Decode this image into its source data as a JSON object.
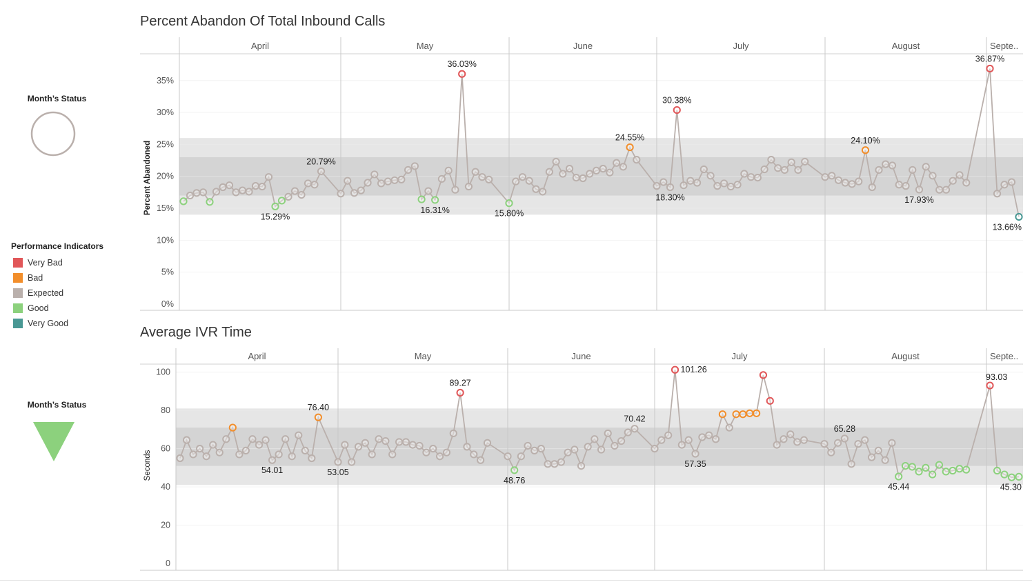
{
  "sidebar": {
    "status_top": {
      "label": "Month’s Status",
      "shape": "circle",
      "color": "#bab0ac"
    },
    "status_bottom": {
      "label": "Month’s Status",
      "shape": "triangle-down",
      "color": "#8cd17d"
    },
    "legend": {
      "title": "Performance Indicators",
      "items": [
        {
          "label": "Very Bad",
          "color": "#e15759"
        },
        {
          "label": "Bad",
          "color": "#f28e2b"
        },
        {
          "label": "Expected",
          "color": "#bab0ac"
        },
        {
          "label": "Good",
          "color": "#8cd17d"
        },
        {
          "label": "Very Good",
          "color": "#499894"
        }
      ]
    }
  },
  "chart_data": [
    {
      "type": "line",
      "title": "Percent Abandon  Of Total Inbound Calls",
      "ylabel": "Percent Abandoned",
      "months": [
        "April",
        "May",
        "June",
        "July",
        "August",
        "Septe.."
      ],
      "month_days": [
        24,
        25,
        22,
        25,
        24,
        5
      ],
      "ylim": [
        0,
        38
      ],
      "yticks": [
        0,
        5,
        10,
        15,
        20,
        25,
        30,
        35
      ],
      "ytick_labels": [
        "0%",
        "5%",
        "10%",
        "15%",
        "20%",
        "25%",
        "30%",
        "35%"
      ],
      "bands": [
        [
          14,
          26
        ],
        [
          17,
          23
        ]
      ],
      "values": [
        [
          16.1,
          17.0,
          17.4,
          17.5,
          16.0,
          17.6,
          18.3,
          18.6,
          17.5,
          17.8,
          17.6,
          18.5,
          18.4,
          19.9,
          15.29,
          16.2,
          16.8,
          17.7,
          17.1,
          18.9,
          18.7,
          20.79
        ],
        [
          17.3,
          19.3,
          17.4,
          17.8,
          19.0,
          20.3,
          18.9,
          19.2,
          19.4,
          19.5,
          21.0,
          21.6,
          16.4,
          17.7,
          16.31,
          19.6,
          20.9,
          17.9,
          36.03,
          18.4,
          20.7,
          19.9,
          19.5
        ],
        [
          15.8,
          19.2,
          19.9,
          19.3,
          18.0,
          17.6,
          20.7,
          22.3,
          20.4,
          21.2,
          19.8,
          19.7,
          20.4,
          20.9,
          21.2,
          20.6,
          22.1,
          21.5,
          24.55,
          22.6
        ],
        [
          18.5,
          19.1,
          18.3,
          30.38,
          18.6,
          19.3,
          19.0,
          21.1,
          20.1,
          18.5,
          18.9,
          18.4,
          18.7,
          20.4,
          19.9,
          19.8,
          21.1,
          22.6,
          21.3,
          21.0,
          22.2,
          21.0,
          22.3
        ],
        [
          19.9,
          20.1,
          19.4,
          19.0,
          18.8,
          19.2,
          24.1,
          18.3,
          21.0,
          21.9,
          21.7,
          18.7,
          18.5,
          21.0,
          17.93,
          21.5,
          20.1,
          17.9,
          17.9,
          19.3,
          20.2,
          19.0
        ],
        [
          36.87,
          17.3,
          18.7,
          19.1,
          13.66
        ]
      ],
      "point_status": [
        [
          "Good",
          "Expected",
          "Expected",
          "Expected",
          "Good",
          "Expected",
          "Expected",
          "Expected",
          "Expected",
          "Expected",
          "Expected",
          "Expected",
          "Expected",
          "Expected",
          "Good",
          "Good",
          "Expected",
          "Expected",
          "Expected",
          "Expected",
          "Expected",
          "Expected"
        ],
        [
          "Expected",
          "Expected",
          "Expected",
          "Expected",
          "Expected",
          "Expected",
          "Expected",
          "Expected",
          "Expected",
          "Expected",
          "Expected",
          "Expected",
          "Good",
          "Expected",
          "Good",
          "Expected",
          "Expected",
          "Expected",
          "Very Bad",
          "Expected",
          "Expected",
          "Expected",
          "Expected"
        ],
        [
          "Good",
          "Expected",
          "Expected",
          "Expected",
          "Expected",
          "Expected",
          "Expected",
          "Expected",
          "Expected",
          "Expected",
          "Expected",
          "Expected",
          "Expected",
          "Expected",
          "Expected",
          "Expected",
          "Expected",
          "Expected",
          "Bad",
          "Expected"
        ],
        [
          "Expected",
          "Expected",
          "Expected",
          "Very Bad",
          "Expected",
          "Expected",
          "Expected",
          "Expected",
          "Expected",
          "Expected",
          "Expected",
          "Expected",
          "Expected",
          "Expected",
          "Expected",
          "Expected",
          "Expected",
          "Expected",
          "Expected",
          "Expected",
          "Expected",
          "Expected",
          "Expected"
        ],
        [
          "Expected",
          "Expected",
          "Expected",
          "Expected",
          "Expected",
          "Expected",
          "Bad",
          "Expected",
          "Expected",
          "Expected",
          "Expected",
          "Expected",
          "Expected",
          "Expected",
          "Expected",
          "Expected",
          "Expected",
          "Expected",
          "Expected",
          "Expected",
          "Expected",
          "Expected"
        ],
        [
          "Very Bad",
          "Expected",
          "Expected",
          "Expected",
          "Very Good"
        ]
      ],
      "value_labels": [
        {
          "month": 0,
          "index": 14,
          "text": "15.29%",
          "pos": "below"
        },
        {
          "month": 0,
          "index": 21,
          "text": "20.79%",
          "pos": "above"
        },
        {
          "month": 1,
          "index": 14,
          "text": "16.31%",
          "pos": "below"
        },
        {
          "month": 1,
          "index": 18,
          "text": "36.03%",
          "pos": "above"
        },
        {
          "month": 2,
          "index": 0,
          "text": "15.80%",
          "pos": "below"
        },
        {
          "month": 2,
          "index": 18,
          "text": "24.55%",
          "pos": "above"
        },
        {
          "month": 3,
          "index": 2,
          "text": "18.30%",
          "pos": "below"
        },
        {
          "month": 3,
          "index": 3,
          "text": "30.38%",
          "pos": "above"
        },
        {
          "month": 4,
          "index": 6,
          "text": "24.10%",
          "pos": "above"
        },
        {
          "month": 4,
          "index": 14,
          "text": "17.93%",
          "pos": "below"
        },
        {
          "month": 5,
          "index": 0,
          "text": "36.87%",
          "pos": "above"
        },
        {
          "month": 5,
          "index": 4,
          "text": "13.66%",
          "pos": "below"
        }
      ]
    },
    {
      "type": "line",
      "title": "Average IVR Time",
      "ylabel": "Seconds",
      "months": [
        "April",
        "May",
        "June",
        "July",
        "August",
        "Septe.."
      ],
      "month_days": [
        24,
        25,
        22,
        25,
        24,
        5
      ],
      "ylim": [
        0,
        110
      ],
      "yticks": [
        0,
        20,
        40,
        60,
        80,
        100
      ],
      "ytick_labels": [
        "0",
        "20",
        "40",
        "60",
        "80",
        "100"
      ],
      "bands": [
        [
          41,
          81
        ],
        [
          51,
          71
        ]
      ],
      "values": [
        [
          55,
          64.5,
          57,
          60,
          56,
          62,
          58,
          65,
          71,
          57,
          59,
          65,
          62,
          64.5,
          54.01,
          57,
          65,
          56,
          67,
          59,
          55,
          76.4
        ],
        [
          53.05,
          62,
          53,
          61,
          63,
          57,
          65,
          64,
          57,
          63.5,
          63.5,
          62,
          61.5,
          58,
          60,
          56,
          58,
          68,
          89.27,
          61,
          57,
          54,
          63
        ],
        [
          56,
          48.76,
          56,
          61.5,
          59,
          60,
          52,
          52,
          53,
          58,
          59.5,
          51,
          61,
          65,
          59.5,
          68,
          61.5,
          64,
          68.5,
          70.42
        ],
        [
          60,
          64.5,
          67,
          101.26,
          62,
          64.5,
          57.35,
          66,
          67,
          65,
          78,
          71,
          78,
          78,
          78.5,
          78.5,
          98.5,
          85,
          62,
          65,
          67.5,
          63.5,
          64.5
        ],
        [
          62.5,
          58,
          63,
          65.28,
          52,
          62.5,
          64.5,
          55.5,
          59,
          54,
          63,
          45.44,
          51,
          50.5,
          48,
          50,
          46.5,
          51.5,
          48,
          48.5,
          49.5,
          49
        ],
        [
          93.03,
          48.5,
          46.5,
          45,
          45.3
        ]
      ],
      "point_status": [
        [
          "Expected",
          "Expected",
          "Expected",
          "Expected",
          "Expected",
          "Expected",
          "Expected",
          "Expected",
          "Bad",
          "Expected",
          "Expected",
          "Expected",
          "Expected",
          "Expected",
          "Expected",
          "Expected",
          "Expected",
          "Expected",
          "Expected",
          "Expected",
          "Expected",
          "Bad"
        ],
        [
          "Expected",
          "Expected",
          "Expected",
          "Expected",
          "Expected",
          "Expected",
          "Expected",
          "Expected",
          "Expected",
          "Expected",
          "Expected",
          "Expected",
          "Expected",
          "Expected",
          "Expected",
          "Expected",
          "Expected",
          "Expected",
          "Very Bad",
          "Expected",
          "Expected",
          "Expected",
          "Expected"
        ],
        [
          "Expected",
          "Good",
          "Expected",
          "Expected",
          "Expected",
          "Expected",
          "Expected",
          "Expected",
          "Expected",
          "Expected",
          "Expected",
          "Expected",
          "Expected",
          "Expected",
          "Expected",
          "Expected",
          "Expected",
          "Expected",
          "Expected",
          "Expected"
        ],
        [
          "Expected",
          "Expected",
          "Expected",
          "Very Bad",
          "Expected",
          "Expected",
          "Expected",
          "Expected",
          "Expected",
          "Expected",
          "Bad",
          "Expected",
          "Bad",
          "Bad",
          "Bad",
          "Bad",
          "Very Bad",
          "Very Bad",
          "Expected",
          "Expected",
          "Expected",
          "Expected",
          "Expected"
        ],
        [
          "Expected",
          "Expected",
          "Expected",
          "Expected",
          "Expected",
          "Expected",
          "Expected",
          "Expected",
          "Expected",
          "Expected",
          "Expected",
          "Good",
          "Good",
          "Good",
          "Good",
          "Good",
          "Good",
          "Good",
          "Good",
          "Good",
          "Good",
          "Good"
        ],
        [
          "Very Bad",
          "Good",
          "Good",
          "Good",
          "Good"
        ]
      ],
      "value_labels": [
        {
          "month": 0,
          "index": 14,
          "text": "54.01",
          "pos": "below"
        },
        {
          "month": 0,
          "index": 21,
          "text": "76.40",
          "pos": "above"
        },
        {
          "month": 1,
          "index": 0,
          "text": "53.05",
          "pos": "below"
        },
        {
          "month": 1,
          "index": 18,
          "text": "89.27",
          "pos": "above"
        },
        {
          "month": 2,
          "index": 1,
          "text": "48.76",
          "pos": "below"
        },
        {
          "month": 2,
          "index": 19,
          "text": "70.42",
          "pos": "above"
        },
        {
          "month": 3,
          "index": 3,
          "text": "101.26",
          "pos": "right"
        },
        {
          "month": 3,
          "index": 6,
          "text": "57.35",
          "pos": "below"
        },
        {
          "month": 4,
          "index": 3,
          "text": "65.28",
          "pos": "above"
        },
        {
          "month": 4,
          "index": 11,
          "text": "45.44",
          "pos": "below"
        },
        {
          "month": 5,
          "index": 0,
          "text": "93.03",
          "pos": "above-right"
        },
        {
          "month": 5,
          "index": 4,
          "text": "45.30",
          "pos": "below"
        }
      ]
    }
  ]
}
